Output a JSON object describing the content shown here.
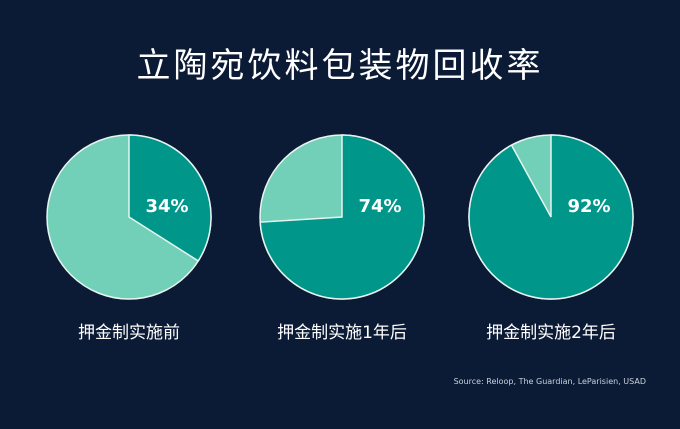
{
  "chart_data": {
    "type": "pie",
    "title": "立陶宛饮料包装物回收率",
    "colors": {
      "recycled": "#00968a",
      "other": "#73d0b8",
      "background": "#0b1a35"
    },
    "charts": [
      {
        "label": "押金制实施前",
        "value": 34,
        "value_label": "34%"
      },
      {
        "label": "押金制实施1年后",
        "value": 74,
        "value_label": "74%"
      },
      {
        "label": "押金制实施2年后",
        "value": 92,
        "value_label": "92%"
      }
    ],
    "source": "Source: Reloop, The Guardian, LeParisien, USAD"
  }
}
